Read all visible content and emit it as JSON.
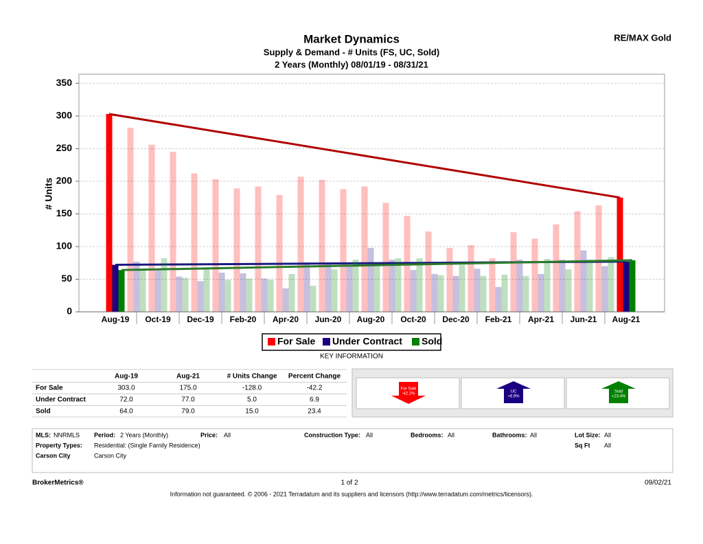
{
  "brand": "RE/MAX Gold",
  "chart_data": {
    "type": "bar",
    "title": "Market Dynamics",
    "subtitle": [
      "Supply & Demand - # Units (FS, UC, Sold)",
      "2 Years (Monthly) 08/01/19 - 08/31/21"
    ],
    "ylabel": "# Units",
    "categories": [
      "Aug-19",
      null,
      "Oct-19",
      null,
      "Dec-19",
      null,
      "Feb-20",
      null,
      "Apr-20",
      null,
      "Jun-20",
      null,
      "Aug-20",
      null,
      "Oct-20",
      null,
      "Dec-20",
      null,
      "Feb-21",
      null,
      "Apr-21",
      null,
      "Jun-21",
      null,
      "Aug-21"
    ],
    "series": [
      {
        "name": "For Sale",
        "color": "#ff0000",
        "trend_color": "#b00000",
        "values": [
          303,
          282,
          256,
          245,
          212,
          203,
          189,
          192,
          179,
          207,
          202,
          188,
          192,
          167,
          147,
          123,
          98,
          102,
          82,
          122,
          112,
          134,
          154,
          163,
          175
        ]
      },
      {
        "name": "Under Contract",
        "color": "#1a0080",
        "trend_color": "#1a1a80",
        "values": [
          72,
          77,
          64,
          54,
          47,
          60,
          59,
          51,
          36,
          76,
          75,
          70,
          98,
          80,
          64,
          58,
          55,
          66,
          38,
          80,
          58,
          80,
          94,
          70,
          77
        ]
      },
      {
        "name": "Sold",
        "color": "#008000",
        "trend_color": "#2a7a2a",
        "values": [
          64,
          65,
          82,
          52,
          65,
          49,
          51,
          49,
          58,
          40,
          65,
          80,
          75,
          82,
          82,
          56,
          72,
          55,
          57,
          55,
          81,
          65,
          80,
          84,
          79
        ]
      }
    ],
    "ylim": [
      0,
      364
    ],
    "yticks": [
      0,
      50,
      100,
      150,
      200,
      250,
      300,
      350
    ],
    "grid": true,
    "legend": "bottom"
  },
  "key_information": {
    "title": "KEY INFORMATION",
    "columns": [
      "Aug-19",
      "Aug-21",
      "# Units Change",
      "Percent Change"
    ],
    "rows": [
      [
        "For Sale",
        "303.0",
        "175.0",
        "-128.0",
        "-42.2"
      ],
      [
        "Under Contract",
        "72.0",
        "77.0",
        "5.0",
        "6.9"
      ],
      [
        "Sold",
        "64.0",
        "79.0",
        "15.0",
        "23.4"
      ]
    ]
  },
  "change_indicators": [
    {
      "label": "For Sale",
      "change": "-42.2%"
    },
    {
      "label": "UC",
      "change": "+6.9%"
    },
    {
      "label": "Sold",
      "change": "+23.4%"
    }
  ],
  "filters": [
    [
      {
        "label": "MLS:",
        "value": "NNRMLS"
      },
      {
        "label": "Period:",
        "value": "2 Years (Monthly)"
      },
      {
        "label": "Price:",
        "value": "All"
      },
      {
        "label": "Construction Type:",
        "value": "All"
      },
      {
        "label": "Bedrooms:",
        "value": "All"
      },
      {
        "label": "Bathrooms:",
        "value": "All"
      },
      {
        "label": "Lot Size:",
        "value": "All"
      }
    ],
    [
      {
        "label": "Property Types:",
        "value": "Residential: (Single Family Residence)"
      },
      {
        "label": "Sq Ft",
        "value": "All"
      }
    ],
    [
      {
        "label": "Carson City",
        "value": "Carson City"
      }
    ]
  ],
  "footer": {
    "brand": "BrokerMetrics®",
    "page": "1 of 2",
    "date": "09/02/21",
    "disclaimer": "Information not guaranteed.  © 2006 - 2021 Terradatum and its suppliers and licensors (http://www.terradatum.com/metrics/licensors)."
  }
}
